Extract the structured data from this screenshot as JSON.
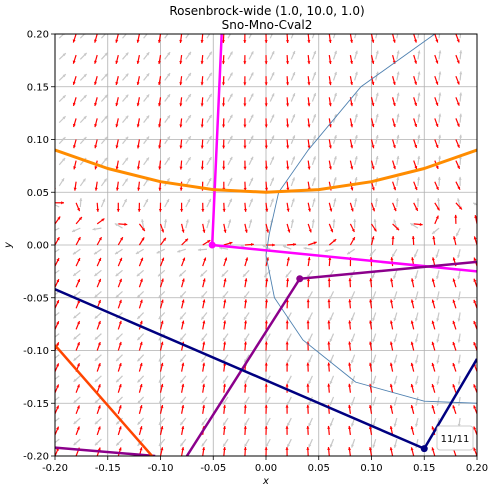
{
  "chart_data": {
    "type": "line",
    "title": "Rosenbrock-wide (1.0, 10.0, 1.0)",
    "subtitle": "Sno-Mno-Cval2",
    "xlabel": "x",
    "ylabel": "y",
    "xlim": [
      -0.2,
      0.2
    ],
    "ylim": [
      -0.2,
      0.2
    ],
    "grid": true,
    "xticks": [
      "-0.20",
      "-0.15",
      "-0.10",
      "-0.05",
      "0.00",
      "0.05",
      "0.10",
      "0.15",
      "0.20"
    ],
    "yticks": [
      "-0.20",
      "-0.15",
      "-0.10",
      "-0.05",
      "0.00",
      "0.05",
      "0.10",
      "0.15",
      "0.20"
    ],
    "badge": "11/11",
    "colors": {
      "arrow_primary": "#ff0000",
      "arrow_secondary": "#c8c8c8",
      "contour": "#4f81b0",
      "parabola": "#ff8c00",
      "magenta": "#ff00ff",
      "purple": "#8b008b",
      "navy": "#000080",
      "orange_red": "#ff4500"
    },
    "series": [
      {
        "color": "#ff00ff",
        "width": 2.5,
        "marker": true,
        "points": [
          [
            -0.042,
            0.2
          ],
          [
            -0.051,
            0.0
          ],
          [
            0.2,
            -0.025
          ]
        ]
      },
      {
        "color": "#8b008b",
        "width": 2.5,
        "marker": true,
        "points": [
          [
            -0.2,
            -0.192
          ],
          [
            -0.105,
            -0.2
          ]
        ]
      },
      {
        "color": "#8b008b",
        "width": 2.5,
        "marker": true,
        "points": [
          [
            -0.075,
            -0.2
          ],
          [
            0.032,
            -0.032
          ],
          [
            0.2,
            -0.016
          ]
        ]
      },
      {
        "color": "#000080",
        "width": 2.5,
        "marker": true,
        "points": [
          [
            -0.2,
            -0.042
          ],
          [
            0.15,
            -0.193
          ],
          [
            0.2,
            -0.108
          ]
        ]
      },
      {
        "color": "#ff4500",
        "width": 2.5,
        "marker": false,
        "points": [
          [
            -0.2,
            -0.095
          ],
          [
            -0.108,
            -0.2
          ]
        ]
      },
      {
        "color": "#ff8c00",
        "width": 3,
        "marker": false,
        "points": [
          [
            -0.2,
            0.09
          ],
          [
            -0.15,
            0.0725
          ],
          [
            -0.1,
            0.06
          ],
          [
            -0.05,
            0.0525
          ],
          [
            0.0,
            0.05
          ],
          [
            0.05,
            0.0525
          ],
          [
            0.1,
            0.06
          ],
          [
            0.15,
            0.0725
          ],
          [
            0.2,
            0.09
          ]
        ]
      }
    ],
    "contour_curve": [
      [
        0.16,
        0.2
      ],
      [
        0.09,
        0.15
      ],
      [
        0.04,
        0.09
      ],
      [
        0.012,
        0.05
      ],
      [
        0.003,
        0.01
      ],
      [
        0.0,
        -0.01
      ],
      [
        0.008,
        -0.05
      ],
      [
        0.035,
        -0.09
      ],
      [
        0.085,
        -0.13
      ],
      [
        0.15,
        -0.148
      ],
      [
        0.2,
        -0.15
      ]
    ]
  }
}
